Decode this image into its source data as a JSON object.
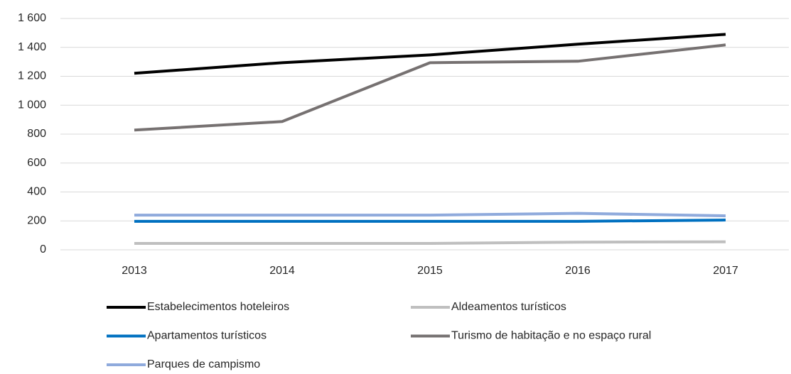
{
  "chart_data": {
    "type": "line",
    "categories": [
      "2013",
      "2014",
      "2015",
      "2016",
      "2017"
    ],
    "series": [
      {
        "name": "Estabelecimentos hoteleiros",
        "color": "#000000",
        "values": [
          1221,
          1294,
          1348,
          1422,
          1490
        ]
      },
      {
        "name": "Aldeamentos turísticos",
        "color": "#bfbfbf",
        "values": [
          44,
          44,
          44,
          53,
          55
        ]
      },
      {
        "name": "Apartamentos turísticos",
        "color": "#0070c0",
        "values": [
          197,
          197,
          197,
          197,
          206
        ]
      },
      {
        "name": "Turismo de habitação e no espaço rural",
        "color": "#767171",
        "values": [
          828,
          887,
          1294,
          1304,
          1417
        ]
      },
      {
        "name": "Parques de campismo",
        "color": "#8faadc",
        "values": [
          240,
          240,
          240,
          252,
          235
        ]
      }
    ],
    "ylim": [
      0,
      1600
    ],
    "yticks": [
      0,
      200,
      400,
      600,
      800,
      {
        "value": 1000,
        "label": "1 000"
      },
      {
        "value": 1200,
        "label": "1 200"
      },
      {
        "value": 1400,
        "label": "1 400"
      },
      {
        "value": 1600,
        "label": "1 600"
      }
    ],
    "grid": true,
    "legend": "bottom"
  }
}
